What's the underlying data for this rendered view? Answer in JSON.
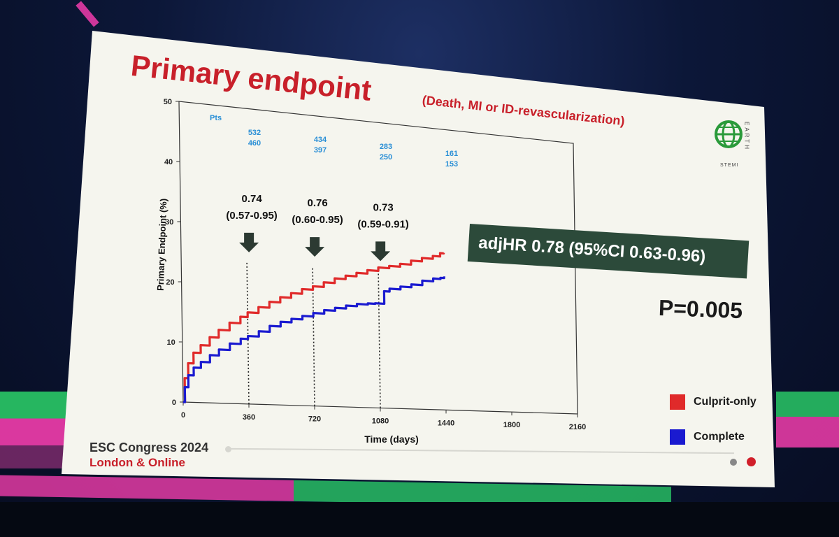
{
  "slide": {
    "title": "Primary endpoint",
    "subtitle": "(Death, MI or ID-revascularization)",
    "hr_box": "adjHR 0.78 (95%CI 0.63-0.96)",
    "p_value": "P=0.005",
    "footer_event": "ESC Congress 2024",
    "footer_location": "London & Online",
    "logo_letters": "EARTH",
    "logo_sub": "STEMI"
  },
  "colors": {
    "culprit": "#e02a2a",
    "complete": "#1a1ad0",
    "title": "#c8202a",
    "risk": "#2a8fd6",
    "box": "#2c4a3a"
  },
  "chart_data": {
    "type": "line",
    "xlabel": "Time (days)",
    "ylabel": "Primary Endpoint (%)",
    "xlim": [
      0,
      2160
    ],
    "ylim": [
      0,
      50
    ],
    "x_ticks": [
      0,
      360,
      720,
      1080,
      1440,
      1800,
      2160
    ],
    "y_ticks": [
      0,
      10,
      20,
      30,
      40,
      50
    ],
    "series": [
      {
        "name": "Culprit-only",
        "color": "#e02a2a",
        "x": [
          0,
          10,
          30,
          60,
          100,
          150,
          200,
          260,
          320,
          360,
          420,
          480,
          540,
          600,
          660,
          720,
          780,
          840,
          900,
          960,
          1020,
          1080,
          1140,
          1200,
          1260,
          1320,
          1380,
          1420,
          1440
        ],
        "y": [
          0,
          4.0,
          6.5,
          8.3,
          9.6,
          11.0,
          12.3,
          13.6,
          14.7,
          15.5,
          16.5,
          17.5,
          18.4,
          19.2,
          20.0,
          20.6,
          21.4,
          22.2,
          22.8,
          23.4,
          24.0,
          24.6,
          25.0,
          25.5,
          26.2,
          26.8,
          27.3,
          27.9,
          28.0
        ]
      },
      {
        "name": "Complete",
        "color": "#1a1ad0",
        "x": [
          0,
          10,
          30,
          60,
          100,
          150,
          200,
          260,
          320,
          360,
          420,
          480,
          540,
          600,
          660,
          720,
          780,
          840,
          900,
          960,
          1020,
          1060,
          1080,
          1110,
          1140,
          1200,
          1260,
          1320,
          1380,
          1420,
          1440
        ],
        "y": [
          0,
          2.5,
          4.5,
          5.8,
          6.8,
          8.0,
          9.0,
          10.1,
          11.0,
          11.5,
          12.4,
          13.4,
          14.2,
          14.8,
          15.4,
          16.0,
          16.6,
          17.1,
          17.6,
          18.0,
          18.2,
          18.3,
          18.3,
          20.5,
          21.0,
          21.5,
          22.0,
          22.8,
          23.3,
          23.5,
          23.8
        ]
      }
    ],
    "risk_table": {
      "label": "Pts",
      "columns": [
        {
          "x": 360,
          "top": "532",
          "bottom": "460"
        },
        {
          "x": 720,
          "top": "434",
          "bottom": "397"
        },
        {
          "x": 1080,
          "top": "283",
          "bottom": "250"
        },
        {
          "x": 1440,
          "top": "161",
          "bottom": "153"
        }
      ]
    },
    "annotations": [
      {
        "x": 360,
        "hr": "0.74",
        "ci": "(0.57-0.95)"
      },
      {
        "x": 720,
        "hr": "0.76",
        "ci": "(0.60-0.95)"
      },
      {
        "x": 1080,
        "hr": "0.73",
        "ci": "(0.59-0.91)"
      }
    ],
    "legend": [
      {
        "name": "Culprit-only",
        "color": "#e02a2a"
      },
      {
        "name": "Complete",
        "color": "#1a1ad0"
      }
    ]
  }
}
